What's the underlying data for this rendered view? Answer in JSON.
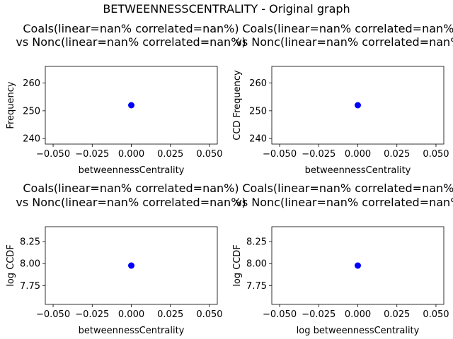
{
  "figure": {
    "suptitle": "BETWEENNESSCENTRALITY - Original graph"
  },
  "chart_data": [
    {
      "type": "scatter",
      "title_line1": "Coals(linear=nan% correlated=nan%)",
      "title_line2": "vs Nonc(linear=nan% correlated=nan%)",
      "xlabel": "betweennessCentrality",
      "ylabel": "Frequency",
      "xlim": [
        -0.055,
        0.055
      ],
      "ylim": [
        238,
        266
      ],
      "xticks": [
        -0.05,
        -0.025,
        0.0,
        0.025,
        0.05
      ],
      "xtick_labels": [
        "−0.050",
        "−0.025",
        "0.000",
        "0.025",
        "0.050"
      ],
      "yticks": [
        240,
        250,
        260
      ],
      "ytick_labels": [
        "240",
        "250",
        "260"
      ],
      "points": [
        {
          "x": 0.0,
          "y": 252
        }
      ],
      "marker_color": "#0000ff",
      "grid": false,
      "legend": false
    },
    {
      "type": "scatter",
      "title_line1": "Coals(linear=nan% correlated=nan%)",
      "title_line2": "vs Nonc(linear=nan% correlated=nan%)",
      "xlabel": "betweennessCentrality",
      "ylabel": "CCD Frequency",
      "xlim": [
        -0.055,
        0.055
      ],
      "ylim": [
        238,
        266
      ],
      "xticks": [
        -0.05,
        -0.025,
        0.0,
        0.025,
        0.05
      ],
      "xtick_labels": [
        "−0.050",
        "−0.025",
        "0.000",
        "0.025",
        "0.050"
      ],
      "yticks": [
        240,
        250,
        260
      ],
      "ytick_labels": [
        "240",
        "250",
        "260"
      ],
      "points": [
        {
          "x": 0.0,
          "y": 252
        }
      ],
      "marker_color": "#0000ff",
      "grid": false,
      "legend": false
    },
    {
      "type": "scatter",
      "title_line1": "Coals(linear=nan% correlated=nan%)",
      "title_line2": "vs Nonc(linear=nan% correlated=nan%)",
      "xlabel": "betweennessCentrality",
      "ylabel": "log CCDF",
      "xlim": [
        -0.055,
        0.055
      ],
      "ylim": [
        7.535,
        8.42
      ],
      "xticks": [
        -0.05,
        -0.025,
        0.0,
        0.025,
        0.05
      ],
      "xtick_labels": [
        "−0.050",
        "−0.025",
        "0.000",
        "0.025",
        "0.050"
      ],
      "yticks": [
        7.75,
        8.0,
        8.25
      ],
      "ytick_labels": [
        "7.75",
        "8.00",
        "8.25"
      ],
      "points": [
        {
          "x": 0.0,
          "y": 7.977
        }
      ],
      "marker_color": "#0000ff",
      "grid": false,
      "legend": false
    },
    {
      "type": "scatter",
      "title_line1": "Coals(linear=nan% correlated=nan%)",
      "title_line2": "vs Nonc(linear=nan% correlated=nan%)",
      "xlabel": "log betweennessCentrality",
      "ylabel": "log CCDF",
      "xlim": [
        -0.055,
        0.055
      ],
      "ylim": [
        7.535,
        8.42
      ],
      "xticks": [
        -0.05,
        -0.025,
        0.0,
        0.025,
        0.05
      ],
      "xtick_labels": [
        "−0.050",
        "−0.025",
        "0.000",
        "0.025",
        "0.050"
      ],
      "yticks": [
        7.75,
        8.0,
        8.25
      ],
      "ytick_labels": [
        "7.75",
        "8.00",
        "8.25"
      ],
      "points": [
        {
          "x": 0.0,
          "y": 7.977
        }
      ],
      "marker_color": "#0000ff",
      "grid": false,
      "legend": false
    }
  ]
}
